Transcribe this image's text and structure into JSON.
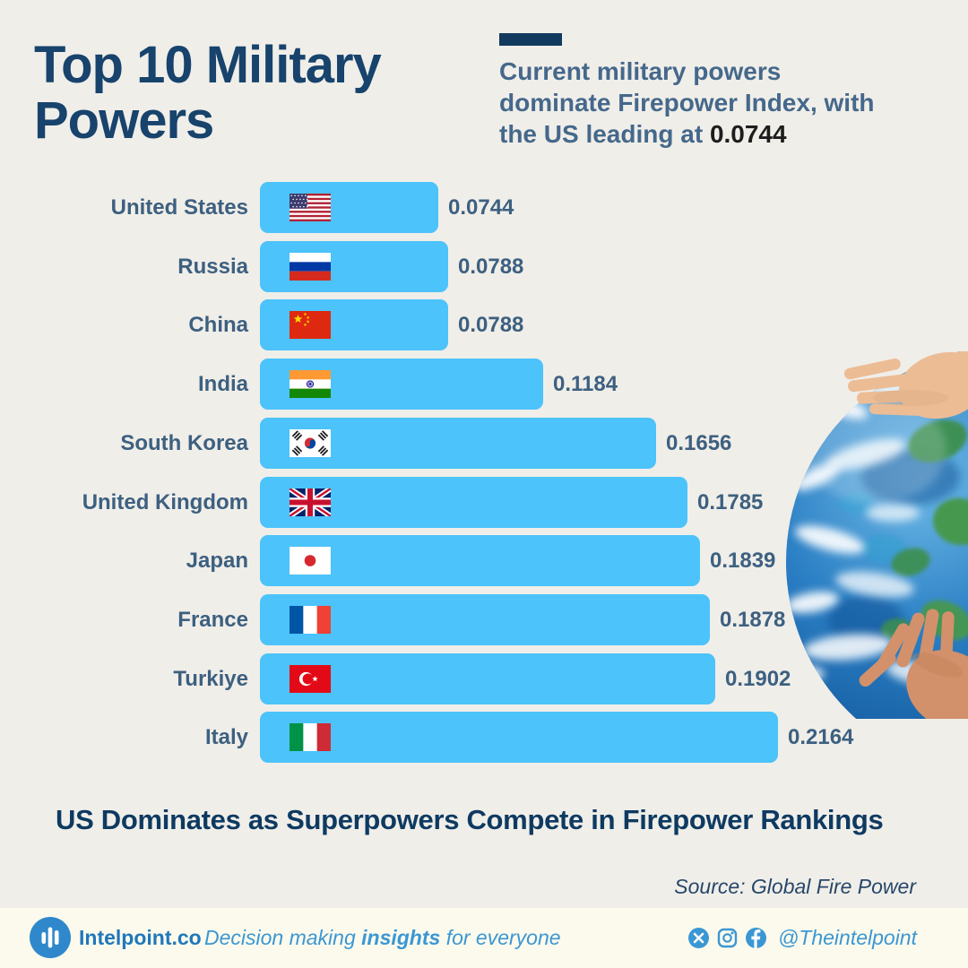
{
  "header": {
    "title": "Top 10 Military\nPowers",
    "subtitle_before": "Current military powers\ndominate Firepower Index, with\nthe US leading at",
    "subtitle_value": "0.0744"
  },
  "chart_data": {
    "type": "bar",
    "orientation": "horizontal",
    "title": "Top 10 Military Powers",
    "value_name": "Global Firepower Index",
    "categories": [
      "United States",
      "Russia",
      "China",
      "India",
      "South Korea",
      "United Kingdom",
      "Japan",
      "France",
      "Turkiye",
      "Italy"
    ],
    "values": [
      0.0744,
      0.0788,
      0.0788,
      0.1184,
      0.1656,
      0.1785,
      0.1839,
      0.1878,
      0.1902,
      0.2164
    ],
    "flags": [
      "us",
      "ru",
      "cn",
      "in",
      "kr",
      "gb",
      "jp",
      "fr",
      "tr",
      "it"
    ],
    "xlim": [
      0,
      0.2164
    ],
    "grid": false,
    "legend": false,
    "bar_color": "#4CC3FA",
    "label_color": "#3D6080"
  },
  "headline": "US Dominates as Superpowers Compete in Firepower Rankings",
  "source": "Source: Global Fire Power",
  "footer": {
    "brand": "Intelpoint.co",
    "tagline_part1": "Decision making ",
    "tagline_bold": "insights",
    "tagline_part2": " for everyone",
    "social_handle": "@Theintelpoint",
    "social_icons": [
      "x-icon",
      "instagram-icon",
      "facebook-icon"
    ]
  },
  "colors": {
    "background": "#F0EEE9",
    "footer_background": "#FCFAEC",
    "title_navy": "#17436C",
    "accent_bar_navy": "#123A5F",
    "subtitle_steel_blue": "#45688B",
    "bar_blue": "#4CC3FA",
    "label_steel_blue": "#3D6080",
    "headline_navy": "#0E3A61",
    "brand_blue": "#1F78BA",
    "social_blue": "#3B97D4"
  }
}
